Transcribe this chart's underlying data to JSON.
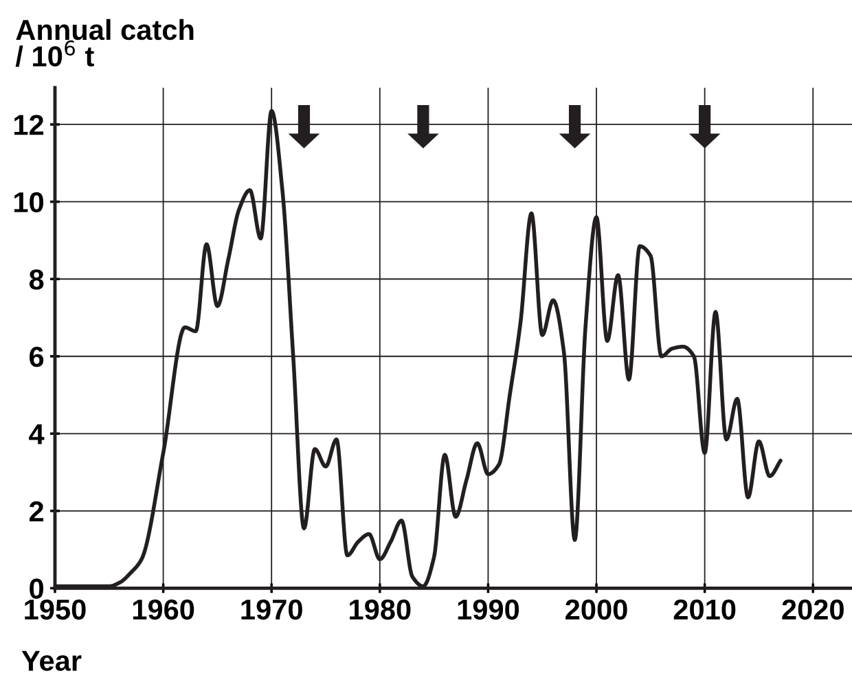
{
  "chart_data": {
    "type": "line",
    "ylabel": "Annual catch\n/ 10$^{6}$ t",
    "xlabel": "Year",
    "x": [
      1950,
      1955,
      1956,
      1957,
      1958,
      1960,
      1962,
      1963,
      1964,
      1965,
      1966,
      1967,
      1968,
      1969,
      1970,
      1971,
      1972,
      1973,
      1974,
      1975,
      1976,
      1977,
      1978,
      1979,
      1980,
      1981,
      1982,
      1983,
      1984,
      1985,
      1986,
      1987,
      1988,
      1989,
      1990,
      1991,
      1992,
      1993,
      1994,
      1995,
      1996,
      1997,
      1998,
      1999,
      2000,
      2001,
      2002,
      2003,
      2004,
      2005,
      2006,
      2007,
      2008,
      2009,
      2010,
      2011,
      2012,
      2013,
      2014,
      2015,
      2016,
      2017
    ],
    "series": [
      {
        "color": "#231f20",
        "values": [
          0.05,
          0.05,
          0.15,
          0.4,
          0.75,
          3.5,
          6.75,
          6.65,
          8.9,
          7.3,
          8.5,
          9.8,
          10.3,
          9.05,
          12.35,
          10.3,
          6.0,
          1.55,
          3.6,
          3.15,
          3.85,
          0.85,
          1.2,
          1.4,
          0.75,
          1.2,
          1.75,
          0.3,
          0.05,
          0.8,
          3.45,
          1.85,
          2.8,
          3.75,
          2.95,
          3.2,
          5.0,
          6.9,
          9.7,
          6.55,
          7.45,
          6.1,
          1.25,
          6.8,
          9.6,
          6.4,
          8.1,
          5.4,
          8.85,
          8.6,
          6.0,
          6.2,
          6.25,
          6.0,
          3.5,
          7.15,
          3.85,
          4.9,
          2.35,
          3.8,
          2.9,
          3.3
        ]
      }
    ],
    "xlim": [
      1950,
      2023.6
    ],
    "xticks": [
      1950,
      1960,
      1970,
      1980,
      1990,
      2000,
      2010,
      2020
    ],
    "ylim": [
      0,
      12.95
    ],
    "yticks": [
      0,
      2,
      4,
      6,
      8,
      10,
      12
    ],
    "grid": true,
    "marker": "none",
    "line_style": "solid"
  }
}
